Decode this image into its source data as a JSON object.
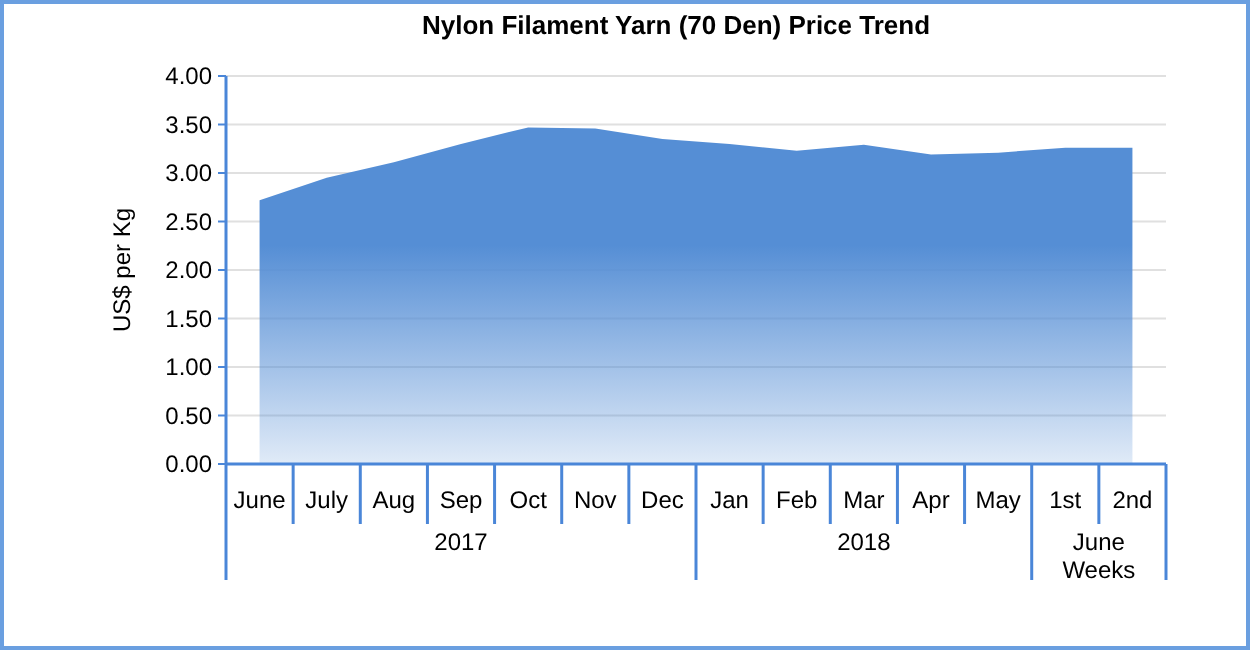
{
  "chart_data": {
    "type": "area",
    "title": "Nylon Filament Yarn (70 Den) Price Trend",
    "ylabel": "US$ per Kg",
    "categories": [
      "June",
      "July",
      "Aug",
      "Sep",
      "Oct",
      "Nov",
      "Dec",
      "Jan",
      "Feb",
      "Mar",
      "Apr",
      "May",
      "1st",
      "2nd"
    ],
    "series": [
      {
        "color": "#558ed5",
        "values": [
          2.72,
          2.95,
          3.11,
          3.3,
          3.47,
          3.46,
          3.35,
          3.3,
          3.23,
          3.29,
          3.19,
          3.21,
          3.26,
          3.26
        ]
      }
    ],
    "ylim": [
      0,
      4
    ],
    "yticks": [
      {
        "value": 0,
        "label": "0.00"
      },
      {
        "value": 0.5,
        "label": "0.50"
      },
      {
        "value": 1,
        "label": "1.00"
      },
      {
        "value": 1.5,
        "label": "1.50"
      },
      {
        "value": 2,
        "label": "2.00"
      },
      {
        "value": 2.5,
        "label": "2.50"
      },
      {
        "value": 3,
        "label": "3.00"
      },
      {
        "value": 3.5,
        "label": "3.50"
      },
      {
        "value": 4,
        "label": "4.00"
      }
    ],
    "grid": "y",
    "annotations": [
      "2017",
      "2018",
      "June Weeks"
    ]
  }
}
